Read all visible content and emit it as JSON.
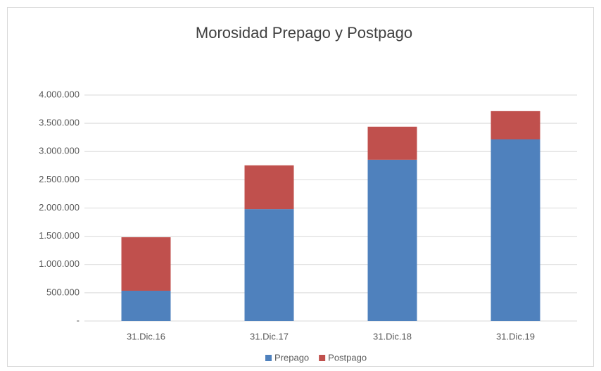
{
  "chart_data": {
    "type": "stacked_bar",
    "title": "Morosidad Prepago y Postpago",
    "categories": [
      "31.Dic.16",
      "31.Dic.17",
      "31.Dic.18",
      "31.Dic.19"
    ],
    "series": [
      {
        "name": "Prepago",
        "color": "#4f81bd",
        "values": [
          536000,
          1980000,
          2855000,
          3215000
        ]
      },
      {
        "name": "Postpago",
        "color": "#c0504d",
        "values": [
          947000,
          775000,
          585000,
          500000
        ]
      }
    ],
    "ylim": [
      0,
      4000000
    ],
    "yticks": [
      {
        "value": 0,
        "label": "-"
      },
      {
        "value": 500000,
        "label": "500.000"
      },
      {
        "value": 1000000,
        "label": "1.000.000"
      },
      {
        "value": 1500000,
        "label": "1.500.000"
      },
      {
        "value": 2000000,
        "label": "2.000.000"
      },
      {
        "value": 2500000,
        "label": "2.500.000"
      },
      {
        "value": 3000000,
        "label": "3.000.000"
      },
      {
        "value": 3500000,
        "label": "3.500.000"
      },
      {
        "value": 4000000,
        "label": "4.000.000"
      }
    ],
    "grid": true,
    "legend": "bottom"
  }
}
